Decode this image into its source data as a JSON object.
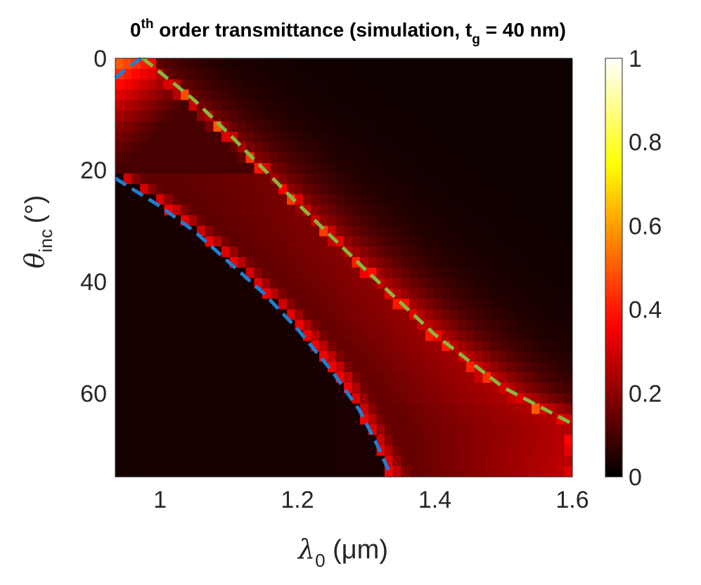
{
  "chart_data": {
    "type": "heatmap",
    "title": {
      "prefix": "0",
      "prefix_sup": "th",
      "main": " order transmittance (simulation, t",
      "sub": "g",
      "suffix": " = 40 nm)"
    },
    "xlabel": {
      "symbol": "λ",
      "sub": "0",
      "unit": " (μm)"
    },
    "ylabel": {
      "symbol": "θ",
      "sub": "inc",
      "unit": "(°)"
    },
    "xlim": [
      0.935,
      1.6
    ],
    "ylim": [
      0,
      75
    ],
    "y_reversed": true,
    "x_ticks": [
      1,
      1.2,
      1.4,
      1.6
    ],
    "x_tick_labels": [
      "1",
      "1.2",
      "1.4",
      "1.6"
    ],
    "y_ticks": [
      0,
      20,
      40,
      60
    ],
    "y_tick_labels": [
      "0",
      "20",
      "40",
      "60"
    ],
    "colorbar": {
      "colormap": "hot",
      "range": [
        0,
        1
      ],
      "ticks": [
        0,
        0.2,
        0.4,
        0.6,
        0.8,
        1
      ],
      "tick_labels": [
        "0",
        "0.2",
        "0.4",
        "0.6",
        "0.8",
        "1"
      ]
    },
    "grid": {
      "nx": 56,
      "ny": 40
    },
    "model": {
      "upper_bright_band": {
        "points_lambda_theta": [
          [
            0.975,
            0
          ],
          [
            1.1,
            14
          ],
          [
            1.2,
            26
          ],
          [
            1.3,
            38
          ],
          [
            1.4,
            50
          ],
          [
            1.5,
            60
          ],
          [
            1.6,
            66
          ]
        ],
        "peak_value": 0.5,
        "half_width_um": 0.012
      },
      "mid_region_value": 0.12,
      "lower_boundary": {
        "points_lambda_theta": [
          [
            0.935,
            21
          ],
          [
            1.0,
            26
          ],
          [
            1.1,
            36
          ],
          [
            1.2,
            48
          ],
          [
            1.26,
            57
          ],
          [
            1.3,
            66
          ],
          [
            1.335,
            75
          ]
        ],
        "edge_value": 0.35
      },
      "right_region_value": 0.32,
      "top_left_bright_value": 0.55,
      "left_dark_value": 0.03
    },
    "overlays": [
      {
        "name": "blue dashed line",
        "color": "#1e7fd0",
        "points_lambda_theta": [
          [
            0.935,
            21.5
          ],
          [
            1.0,
            26.5
          ],
          [
            1.05,
            31
          ],
          [
            1.1,
            36.5
          ],
          [
            1.15,
            42
          ],
          [
            1.2,
            48.5
          ],
          [
            1.25,
            56
          ],
          [
            1.29,
            63
          ],
          [
            1.315,
            69
          ],
          [
            1.337,
            75
          ]
        ]
      },
      {
        "name": "blue dashed line top",
        "color": "#1e7fd0",
        "points_lambda_theta": [
          [
            0.935,
            3.5
          ],
          [
            0.955,
            1.5
          ],
          [
            0.972,
            0
          ]
        ]
      },
      {
        "name": "green dashed line",
        "color": "#86b83c",
        "points_lambda_theta": [
          [
            0.975,
            0
          ],
          [
            1.05,
            7.5
          ],
          [
            1.1,
            13.5
          ],
          [
            1.2,
            26
          ],
          [
            1.3,
            38
          ],
          [
            1.4,
            49.5
          ],
          [
            1.5,
            59
          ],
          [
            1.6,
            65.5
          ]
        ]
      }
    ]
  }
}
